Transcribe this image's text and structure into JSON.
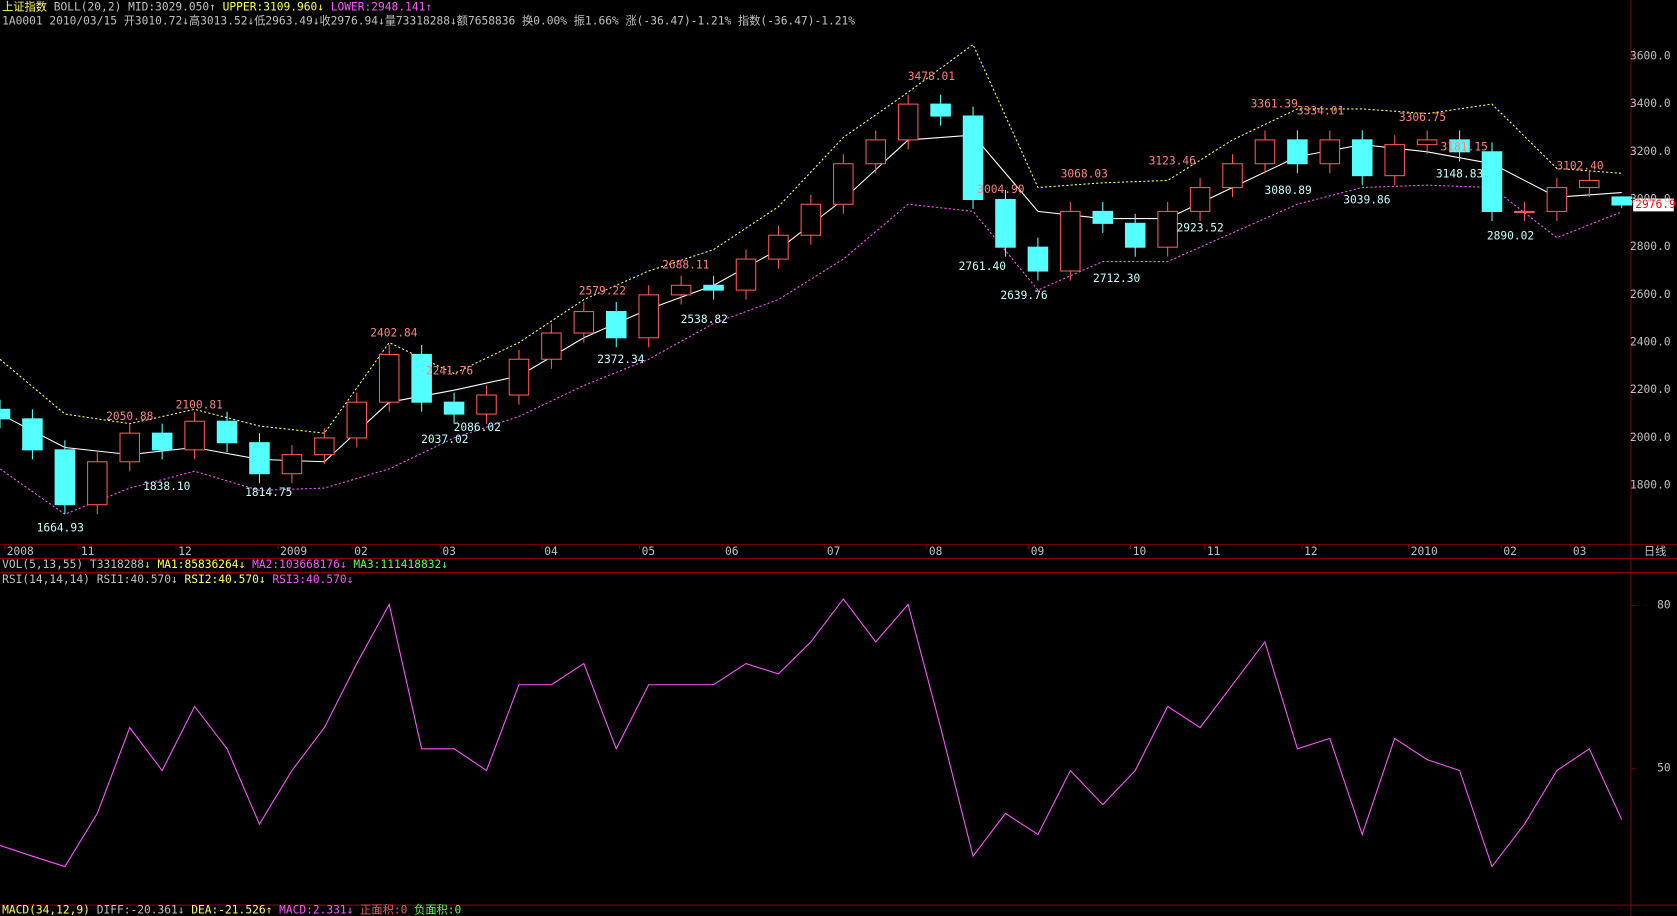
{
  "chart_data": [
    {
      "type": "candlestick",
      "title": "上证指数",
      "indicator_labels": [
        "BOLL(20,2)",
        "MID:3029.050↑",
        "UPPER:3109.960↓",
        "LOWER:2948.141↑"
      ],
      "info": "1A0001 2010/03/15 开3010.72↓高3013.52↓低2963.49↓收2976.94↓量73318288↓额7658836 换0.00% 振1.66% 涨(-36.47)-1.21% 指数(-36.47)-1.21%",
      "last_tag": "2976.9",
      "period_label": "日线",
      "xlim": [
        0,
        352
      ],
      "xticks": [
        {
          "value": 1,
          "label": "2008"
        },
        {
          "value": 17,
          "label": "11"
        },
        {
          "value": 38,
          "label": "12"
        },
        {
          "value": 60,
          "label": "2009"
        },
        {
          "value": 76,
          "label": "02"
        },
        {
          "value": 95,
          "label": "03"
        },
        {
          "value": 117,
          "label": "04"
        },
        {
          "value": 138,
          "label": "05"
        },
        {
          "value": 156,
          "label": "06"
        },
        {
          "value": 178,
          "label": "07"
        },
        {
          "value": 200,
          "label": "08"
        },
        {
          "value": 222,
          "label": "09"
        },
        {
          "value": 244,
          "label": "10"
        },
        {
          "value": 260,
          "label": "11"
        },
        {
          "value": 281,
          "label": "12"
        },
        {
          "value": 304,
          "label": "2010"
        },
        {
          "value": 324,
          "label": "02"
        },
        {
          "value": 339,
          "label": "03"
        }
      ],
      "ylim": [
        1557,
        3710
      ],
      "yticks": [
        {
          "value": 1800,
          "label": "1800.0"
        },
        {
          "value": 2000,
          "label": "2000.0"
        },
        {
          "value": 2200,
          "label": "2200.0"
        },
        {
          "value": 2400,
          "label": "2400.0"
        },
        {
          "value": 2600,
          "label": "2600.0"
        },
        {
          "value": 2800,
          "label": "2800.0"
        },
        {
          "value": 3000,
          "label": "3000.0"
        },
        {
          "value": 3200,
          "label": "3200.0"
        },
        {
          "value": 3400,
          "label": "3400.0"
        },
        {
          "value": 3600,
          "label": "3600.0"
        }
      ],
      "up_color": "#ff5454",
      "down_color": "#54ffff",
      "x": [
        0,
        7,
        14,
        21,
        28,
        35,
        42,
        49,
        56,
        63,
        70,
        77,
        84,
        91,
        98,
        105,
        112,
        119,
        126,
        133,
        140,
        147,
        154,
        161,
        168,
        175,
        182,
        189,
        196,
        203,
        210,
        217,
        224,
        231,
        238,
        245,
        252,
        259,
        266,
        273,
        280,
        287,
        294,
        301,
        308,
        315,
        322,
        329,
        336,
        343,
        350
      ],
      "open": [
        2120,
        2080,
        1950,
        1720,
        1900,
        2020,
        1950,
        2070,
        1980,
        1850,
        1930,
        2000,
        2150,
        2350,
        2150,
        2100,
        2180,
        2330,
        2440,
        2530,
        2420,
        2600,
        2640,
        2620,
        2750,
        2850,
        2980,
        3150,
        3250,
        3400,
        3350,
        3000,
        2800,
        2700,
        2950,
        2900,
        2800,
        2950,
        3050,
        3150,
        3250,
        3150,
        3250,
        3100,
        3230,
        3250,
        3200,
        2950,
        2950,
        3050,
        3010.72
      ],
      "high": [
        2160,
        2120,
        1990,
        1940,
        2060,
        2060,
        2110,
        2110,
        2020,
        1970,
        2040,
        2190,
        2390,
        2390,
        2190,
        2220,
        2370,
        2480,
        2570,
        2570,
        2640,
        2680,
        2680,
        2790,
        2890,
        3020,
        3190,
        3290,
        3440,
        3440,
        3390,
        3040,
        2840,
        2990,
        2990,
        2940,
        2990,
        3090,
        3190,
        3290,
        3290,
        3290,
        3290,
        3270,
        3290,
        3290,
        3240,
        2990,
        3090,
        3120,
        3013.52
      ],
      "low": [
        2040,
        1910,
        1680,
        1680,
        1860,
        1910,
        1910,
        1940,
        1810,
        1810,
        1890,
        1960,
        2110,
        2110,
        2060,
        2060,
        2140,
        2290,
        2400,
        2380,
        2380,
        2560,
        2580,
        2580,
        2710,
        2810,
        2940,
        3110,
        3210,
        3310,
        2960,
        2760,
        2660,
        2660,
        2860,
        2760,
        2760,
        2910,
        3010,
        3110,
        3110,
        3110,
        3060,
        3060,
        3190,
        3160,
        2910,
        2910,
        2910,
        3010,
        2963.49
      ],
      "close": [
        2080,
        1950,
        1720,
        1900,
        2020,
        1950,
        2070,
        1980,
        1850,
        1930,
        2000,
        2150,
        2350,
        2150,
        2100,
        2180,
        2330,
        2440,
        2530,
        2420,
        2600,
        2640,
        2620,
        2750,
        2850,
        2980,
        3150,
        3250,
        3400,
        3350,
        3000,
        2800,
        2700,
        2950,
        2900,
        2800,
        2950,
        3050,
        3150,
        3250,
        3150,
        3250,
        3100,
        3230,
        3250,
        3200,
        2950,
        2950,
        3050,
        3080,
        2976.94
      ],
      "bands": [
        {
          "name": "UPPER",
          "color": "#ffff54",
          "dashed": true,
          "x": [
            0,
            14,
            28,
            42,
            56,
            70,
            84,
            98,
            112,
            126,
            140,
            154,
            168,
            182,
            196,
            210,
            224,
            238,
            252,
            266,
            280,
            294,
            308,
            322,
            336,
            350
          ],
          "values": [
            2330,
            2100,
            2060,
            2120,
            2050,
            2020,
            2400,
            2270,
            2400,
            2580,
            2700,
            2790,
            2970,
            3260,
            3450,
            3650,
            3050,
            3070,
            3080,
            3250,
            3380,
            3380,
            3360,
            3400,
            3130,
            3109.96
          ]
        },
        {
          "name": "MID",
          "color": "#ffffff",
          "dashed": false,
          "x": [
            0,
            14,
            28,
            42,
            56,
            70,
            84,
            98,
            112,
            126,
            140,
            154,
            168,
            182,
            196,
            210,
            224,
            238,
            252,
            266,
            280,
            294,
            308,
            322,
            336,
            350
          ],
          "values": [
            2100,
            1960,
            1930,
            1960,
            1910,
            1900,
            2150,
            2200,
            2260,
            2420,
            2540,
            2640,
            2790,
            3000,
            3250,
            3270,
            2950,
            2920,
            2920,
            3050,
            3180,
            3230,
            3200,
            3150,
            3010,
            3029.05
          ]
        },
        {
          "name": "LOWER",
          "color": "#ff54ff",
          "dashed": true,
          "x": [
            0,
            14,
            28,
            42,
            56,
            70,
            84,
            98,
            112,
            126,
            140,
            154,
            168,
            182,
            196,
            210,
            224,
            238,
            252,
            266,
            280,
            294,
            308,
            322,
            336,
            350
          ],
          "values": [
            1870,
            1680,
            1790,
            1860,
            1780,
            1790,
            1870,
            2000,
            2090,
            2220,
            2330,
            2480,
            2580,
            2750,
            2980,
            2950,
            2620,
            2740,
            2740,
            2860,
            2980,
            3050,
            3060,
            3050,
            2840,
            2948.141
          ]
        }
      ],
      "annotations": [
        {
          "text": "2050.88",
          "x": 28,
          "y": 2050.88,
          "kind": "high"
        },
        {
          "text": "2100.81",
          "x": 43,
          "y": 2100.81,
          "kind": "high"
        },
        {
          "text": "2402.84",
          "x": 85,
          "y": 2402.84,
          "kind": "high"
        },
        {
          "text": "2241.76",
          "x": 97,
          "y": 2241.76,
          "kind": "high"
        },
        {
          "text": "2579.22",
          "x": 130,
          "y": 2579.22,
          "kind": "high"
        },
        {
          "text": "2688.11",
          "x": 148,
          "y": 2688.11,
          "kind": "high"
        },
        {
          "text": "3478.01",
          "x": 201,
          "y": 3478.01,
          "kind": "high"
        },
        {
          "text": "3004.90",
          "x": 216,
          "y": 3004.9,
          "kind": "high"
        },
        {
          "text": "3068.03",
          "x": 234,
          "y": 3068.03,
          "kind": "high"
        },
        {
          "text": "3123.46",
          "x": 253,
          "y": 3123.46,
          "kind": "high"
        },
        {
          "text": "3361.39",
          "x": 275,
          "y": 3361.39,
          "kind": "high"
        },
        {
          "text": "3334.01",
          "x": 285,
          "y": 3334.01,
          "kind": "high"
        },
        {
          "text": "3306.75",
          "x": 307,
          "y": 3306.75,
          "kind": "high"
        },
        {
          "text": "3181.15",
          "x": 316,
          "y": 3181.15,
          "kind": "high"
        },
        {
          "text": "3102.40",
          "x": 341,
          "y": 3102.4,
          "kind": "high"
        },
        {
          "text": "1664.93",
          "x": 13,
          "y": 1664.93,
          "kind": "low"
        },
        {
          "text": "1838.10",
          "x": 36,
          "y": 1838.1,
          "kind": "low"
        },
        {
          "text": "1814.75",
          "x": 58,
          "y": 1814.75,
          "kind": "low"
        },
        {
          "text": "2037.02",
          "x": 96,
          "y": 2037.02,
          "kind": "low"
        },
        {
          "text": "2086.02",
          "x": 103,
          "y": 2086.02,
          "kind": "low"
        },
        {
          "text": "2372.34",
          "x": 134,
          "y": 2372.34,
          "kind": "low"
        },
        {
          "text": "2538.82",
          "x": 152,
          "y": 2538.82,
          "kind": "low"
        },
        {
          "text": "2761.40",
          "x": 212,
          "y": 2761.4,
          "kind": "low"
        },
        {
          "text": "2639.76",
          "x": 221,
          "y": 2639.76,
          "kind": "low"
        },
        {
          "text": "2712.30",
          "x": 241,
          "y": 2712.3,
          "kind": "low"
        },
        {
          "text": "2923.52",
          "x": 259,
          "y": 2923.52,
          "kind": "low"
        },
        {
          "text": "3080.89",
          "x": 278,
          "y": 3080.89,
          "kind": "low"
        },
        {
          "text": "3039.86",
          "x": 295,
          "y": 3039.86,
          "kind": "low"
        },
        {
          "text": "3148.83",
          "x": 315,
          "y": 3148.83,
          "kind": "low"
        },
        {
          "text": "2890.02",
          "x": 326,
          "y": 2890.02,
          "kind": "low"
        }
      ]
    },
    {
      "type": "line",
      "indicator_labels": [
        "RSI(14,14,14)",
        "RSI1:40.570↓",
        "RSI2:40.570↓",
        "RSI3:40.570↓"
      ],
      "xlim": [
        0,
        352
      ],
      "ylim": [
        24.8,
        85.7
      ],
      "yticks": [
        50,
        80
      ],
      "series": [
        {
          "name": "RSI1",
          "color": "#ff54ff",
          "x": [
            0,
            7,
            14,
            21,
            28,
            35,
            42,
            49,
            56,
            63,
            70,
            77,
            84,
            91,
            98,
            105,
            112,
            119,
            126,
            133,
            140,
            147,
            154,
            161,
            168,
            175,
            182,
            189,
            196,
            203,
            210,
            217,
            224,
            231,
            238,
            245,
            252,
            259,
            266,
            273,
            280,
            287,
            294,
            301,
            308,
            315,
            322,
            329,
            336,
            343,
            350
          ],
          "values": [
            35.8,
            33.8,
            31.9,
            41.7,
            57.5,
            49.6,
            61.4,
            53.6,
            39.7,
            49.6,
            57.5,
            69.3,
            80.2,
            53.6,
            53.6,
            49.6,
            65.4,
            65.4,
            69.3,
            53.6,
            65.4,
            65.4,
            65.4,
            69.3,
            67.4,
            73.3,
            81.2,
            73.3,
            80.2,
            57.5,
            33.8,
            41.7,
            37.8,
            49.6,
            43.3,
            49.6,
            61.4,
            57.5,
            65.4,
            73.3,
            53.6,
            55.5,
            37.8,
            55.5,
            51.6,
            49.6,
            31.9,
            39.7,
            49.6,
            53.6,
            40.57
          ]
        }
      ]
    }
  ],
  "status_lines": {
    "vol": [
      "VOL(5,13,55)",
      "T3318288↓",
      "MA1:85836264↓",
      "MA2:103668176↓",
      "MA3:111418832↓"
    ],
    "macd": [
      "MACD(34,12,9)",
      "DIFF:-20.361↓",
      "DEA:-21.526↑",
      "MACD:2.331↓",
      "正面积:0",
      "负面积:0"
    ]
  }
}
